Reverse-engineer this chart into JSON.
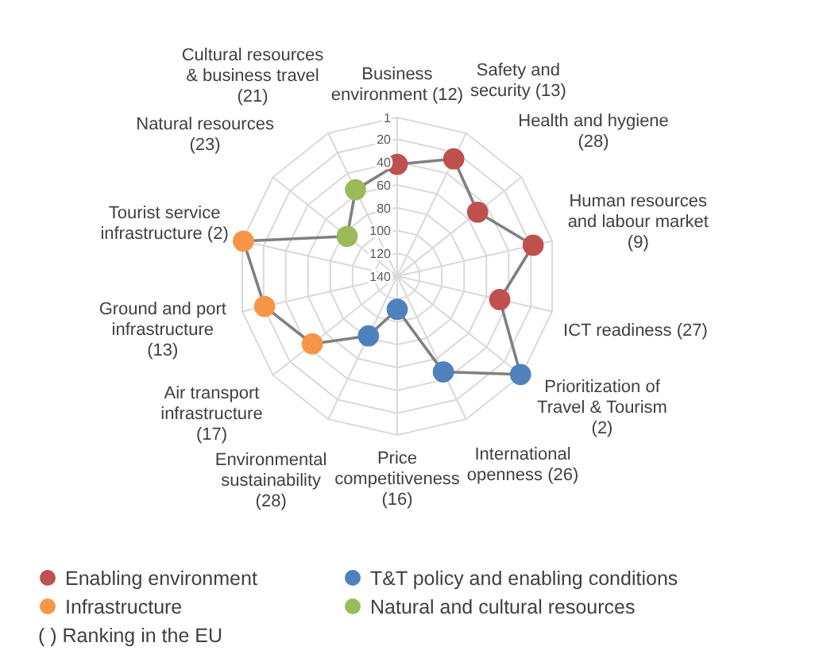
{
  "chart_data": {
    "type": "radar",
    "categories": [
      "Business environment (12)",
      "Safety and security (13)",
      "Health and hygiene (28)",
      "Human resources and labour market (9)",
      "ICT readiness (27)",
      "Prioritization of Travel & Tourism (2)",
      "International openness (26)",
      "Price competitiveness (16)",
      "Environmental sustainability (28)",
      "Air transport infrastructure (17)",
      "Ground and port infrastructure (13)",
      "Tourist service infrastructure (2)",
      "Natural resources (23)",
      "Cultural resources & business travel (21)"
    ],
    "ylim": [
      140,
      1
    ],
    "yticks": [
      1,
      20,
      40,
      60,
      80,
      100,
      120,
      140
    ],
    "grid": true,
    "marker": "circle",
    "line_style": "solid",
    "series": [
      {
        "color": "#808080",
        "colors": [
          "#c0504d",
          "#c0504d",
          "#c0504d",
          "#c0504d",
          "#c0504d",
          "#4f81bd",
          "#4f81bd",
          "#4f81bd",
          "#4f81bd",
          "#f79646",
          "#f79646",
          "#f79646",
          "#9bbb59",
          "#9bbb59"
        ],
        "values": [
          42,
          26,
          50,
          18,
          48,
          2,
          47,
          111,
          82,
          45,
          21,
          2,
          84,
          56
        ]
      }
    ],
    "annotations": [
      "Enabling environment",
      "T&T policy and enabling conditions",
      "Infrastructure",
      "Natural and cultural resources",
      "( ) Ranking in the EU"
    ]
  }
}
